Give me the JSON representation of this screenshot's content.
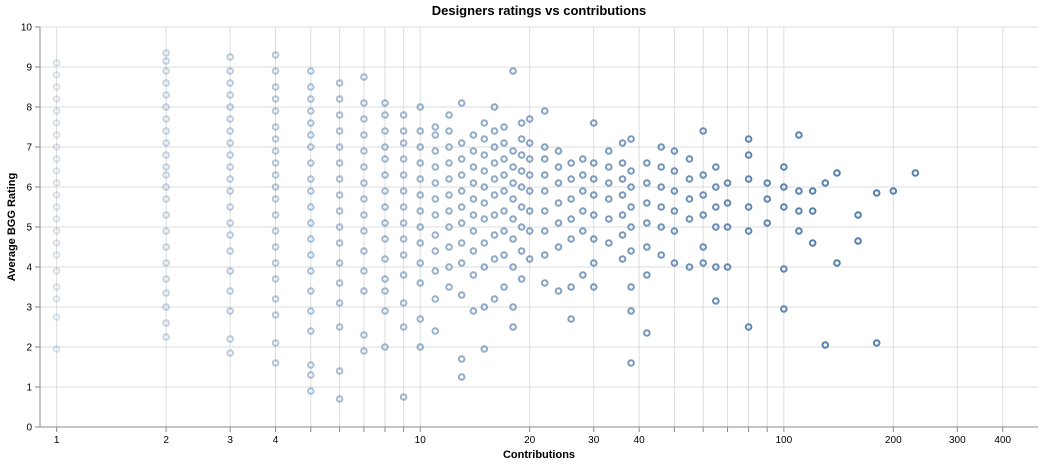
{
  "chart_data": {
    "type": "scatter",
    "title": "Designers ratings vs contributions",
    "xlabel": "Contributions",
    "ylabel": "Average BGG Rating",
    "x_scale": "log",
    "xlim": [
      0.9,
      500
    ],
    "ylim": [
      0,
      10
    ],
    "grid": true,
    "legend": "none",
    "mark": "hollow-circle",
    "point_color": "#4c78a8",
    "x_tick_labels": [
      "1",
      "2",
      "3",
      "4",
      "10",
      "20",
      "30",
      "40",
      "100",
      "200",
      "300",
      "400"
    ],
    "x_tick_values": [
      1,
      2,
      3,
      4,
      10,
      20,
      30,
      40,
      100,
      200,
      300,
      400
    ],
    "x_minor_ticks": [
      5,
      6,
      7,
      8,
      9,
      50,
      60,
      70,
      80,
      90
    ],
    "y_ticks": [
      0,
      1,
      2,
      3,
      4,
      5,
      6,
      7,
      8,
      9,
      10
    ],
    "y_tick_labels": [
      "0",
      "1",
      "2",
      "3",
      "4",
      "5",
      "6",
      "7",
      "8",
      "9",
      "10"
    ],
    "points": [
      [
        1,
        1.95
      ],
      [
        1,
        2.75
      ],
      [
        1,
        3.2
      ],
      [
        1,
        3.5
      ],
      [
        1,
        3.9
      ],
      [
        1,
        4.3
      ],
      [
        1,
        4.6
      ],
      [
        1,
        4.9
      ],
      [
        1,
        5.2
      ],
      [
        1,
        5.5
      ],
      [
        1,
        5.8
      ],
      [
        1,
        6.1
      ],
      [
        1,
        6.4
      ],
      [
        1,
        6.7
      ],
      [
        1,
        7.0
      ],
      [
        1,
        7.3
      ],
      [
        1,
        7.6
      ],
      [
        1,
        7.9
      ],
      [
        1,
        8.2
      ],
      [
        1,
        8.5
      ],
      [
        1,
        8.8
      ],
      [
        1,
        9.1
      ],
      [
        2,
        2.25
      ],
      [
        2,
        2.6
      ],
      [
        2,
        3.0
      ],
      [
        2,
        3.35
      ],
      [
        2,
        3.7
      ],
      [
        2,
        4.1
      ],
      [
        2,
        4.5
      ],
      [
        2,
        4.9
      ],
      [
        2,
        5.3
      ],
      [
        2,
        5.7
      ],
      [
        2,
        6.0
      ],
      [
        2,
        6.3
      ],
      [
        2,
        6.5
      ],
      [
        2,
        6.8
      ],
      [
        2,
        7.1
      ],
      [
        2,
        7.4
      ],
      [
        2,
        7.7
      ],
      [
        2,
        8.0
      ],
      [
        2,
        8.3
      ],
      [
        2,
        8.6
      ],
      [
        2,
        8.9
      ],
      [
        2,
        9.15
      ],
      [
        2,
        9.35
      ],
      [
        3,
        1.85
      ],
      [
        3,
        2.2
      ],
      [
        3,
        2.9
      ],
      [
        3,
        3.4
      ],
      [
        3,
        3.9
      ],
      [
        3,
        4.4
      ],
      [
        3,
        4.8
      ],
      [
        3,
        5.1
      ],
      [
        3,
        5.5
      ],
      [
        3,
        5.9
      ],
      [
        3,
        6.2
      ],
      [
        3,
        6.5
      ],
      [
        3,
        6.8
      ],
      [
        3,
        7.1
      ],
      [
        3,
        7.4
      ],
      [
        3,
        7.7
      ],
      [
        3,
        8.0
      ],
      [
        3,
        8.3
      ],
      [
        3,
        8.6
      ],
      [
        3,
        8.9
      ],
      [
        3,
        9.25
      ],
      [
        4,
        1.6
      ],
      [
        4,
        2.1
      ],
      [
        4,
        2.8
      ],
      [
        4,
        3.2
      ],
      [
        4,
        3.7
      ],
      [
        4,
        4.1
      ],
      [
        4,
        4.5
      ],
      [
        4,
        4.9
      ],
      [
        4,
        5.3
      ],
      [
        4,
        5.7
      ],
      [
        4,
        6.0
      ],
      [
        4,
        6.3
      ],
      [
        4,
        6.6
      ],
      [
        4,
        6.9
      ],
      [
        4,
        7.2
      ],
      [
        4,
        7.5
      ],
      [
        4,
        7.9
      ],
      [
        4,
        8.2
      ],
      [
        4,
        8.5
      ],
      [
        4,
        8.9
      ],
      [
        4,
        9.3
      ],
      [
        5,
        0.9
      ],
      [
        5,
        1.3
      ],
      [
        5,
        1.55
      ],
      [
        5,
        2.4
      ],
      [
        5,
        2.9
      ],
      [
        5,
        3.4
      ],
      [
        5,
        3.9
      ],
      [
        5,
        4.3
      ],
      [
        5,
        4.7
      ],
      [
        5,
        5.1
      ],
      [
        5,
        5.5
      ],
      [
        5,
        5.9
      ],
      [
        5,
        6.2
      ],
      [
        5,
        6.6
      ],
      [
        5,
        7.0
      ],
      [
        5,
        7.3
      ],
      [
        5,
        7.6
      ],
      [
        5,
        7.9
      ],
      [
        5,
        8.2
      ],
      [
        5,
        8.5
      ],
      [
        5,
        8.9
      ],
      [
        6,
        0.7
      ],
      [
        6,
        1.4
      ],
      [
        6,
        2.5
      ],
      [
        6,
        3.1
      ],
      [
        6,
        3.6
      ],
      [
        6,
        4.1
      ],
      [
        6,
        4.6
      ],
      [
        6,
        5.0
      ],
      [
        6,
        5.4
      ],
      [
        6,
        5.8
      ],
      [
        6,
        6.2
      ],
      [
        6,
        6.6
      ],
      [
        6,
        7.0
      ],
      [
        6,
        7.4
      ],
      [
        6,
        7.8
      ],
      [
        6,
        8.2
      ],
      [
        6,
        8.6
      ],
      [
        7,
        1.9
      ],
      [
        7,
        2.3
      ],
      [
        7,
        3.4
      ],
      [
        7,
        3.9
      ],
      [
        7,
        4.4
      ],
      [
        7,
        4.9
      ],
      [
        7,
        5.3
      ],
      [
        7,
        5.7
      ],
      [
        7,
        6.1
      ],
      [
        7,
        6.5
      ],
      [
        7,
        6.9
      ],
      [
        7,
        7.3
      ],
      [
        7,
        7.7
      ],
      [
        7,
        8.1
      ],
      [
        7,
        8.75
      ],
      [
        8,
        2.0
      ],
      [
        8,
        2.9
      ],
      [
        8,
        3.4
      ],
      [
        8,
        3.7
      ],
      [
        8,
        4.2
      ],
      [
        8,
        4.7
      ],
      [
        8,
        5.1
      ],
      [
        8,
        5.5
      ],
      [
        8,
        5.9
      ],
      [
        8,
        6.3
      ],
      [
        8,
        6.7
      ],
      [
        8,
        7.0
      ],
      [
        8,
        7.4
      ],
      [
        8,
        7.8
      ],
      [
        8,
        8.1
      ],
      [
        9,
        0.75
      ],
      [
        9,
        2.5
      ],
      [
        9,
        3.1
      ],
      [
        9,
        3.8
      ],
      [
        9,
        4.3
      ],
      [
        9,
        4.7
      ],
      [
        9,
        5.1
      ],
      [
        9,
        5.5
      ],
      [
        9,
        5.9
      ],
      [
        9,
        6.3
      ],
      [
        9,
        6.7
      ],
      [
        9,
        7.1
      ],
      [
        9,
        7.4
      ],
      [
        9,
        7.8
      ],
      [
        10,
        2.0
      ],
      [
        10,
        2.7
      ],
      [
        10,
        3.6
      ],
      [
        10,
        4.1
      ],
      [
        10,
        4.6
      ],
      [
        10,
        5.0
      ],
      [
        10,
        5.4
      ],
      [
        10,
        5.8
      ],
      [
        10,
        6.2
      ],
      [
        10,
        6.6
      ],
      [
        10,
        7.0
      ],
      [
        10,
        7.4
      ],
      [
        10,
        8.0
      ],
      [
        11,
        2.4
      ],
      [
        11,
        3.2
      ],
      [
        11,
        3.9
      ],
      [
        11,
        4.4
      ],
      [
        11,
        4.8
      ],
      [
        11,
        5.3
      ],
      [
        11,
        5.7
      ],
      [
        11,
        6.1
      ],
      [
        11,
        6.5
      ],
      [
        11,
        6.9
      ],
      [
        11,
        7.3
      ],
      [
        11,
        7.5
      ],
      [
        12,
        3.5
      ],
      [
        12,
        4.0
      ],
      [
        12,
        4.5
      ],
      [
        12,
        5.0
      ],
      [
        12,
        5.4
      ],
      [
        12,
        5.8
      ],
      [
        12,
        6.2
      ],
      [
        12,
        6.6
      ],
      [
        12,
        7.0
      ],
      [
        12,
        7.4
      ],
      [
        12,
        7.8
      ],
      [
        13,
        1.25
      ],
      [
        13,
        1.7
      ],
      [
        13,
        3.3
      ],
      [
        13,
        4.1
      ],
      [
        13,
        4.6
      ],
      [
        13,
        5.1
      ],
      [
        13,
        5.5
      ],
      [
        13,
        5.9
      ],
      [
        13,
        6.3
      ],
      [
        13,
        6.7
      ],
      [
        13,
        7.1
      ],
      [
        13,
        8.1
      ],
      [
        14,
        2.9
      ],
      [
        14,
        3.8
      ],
      [
        14,
        4.4
      ],
      [
        14,
        4.9
      ],
      [
        14,
        5.3
      ],
      [
        14,
        5.7
      ],
      [
        14,
        6.1
      ],
      [
        14,
        6.5
      ],
      [
        14,
        6.9
      ],
      [
        14,
        7.3
      ],
      [
        15,
        1.95
      ],
      [
        15,
        3.0
      ],
      [
        15,
        4.0
      ],
      [
        15,
        4.6
      ],
      [
        15,
        5.2
      ],
      [
        15,
        5.6
      ],
      [
        15,
        6.0
      ],
      [
        15,
        6.4
      ],
      [
        15,
        6.8
      ],
      [
        15,
        7.2
      ],
      [
        15,
        7.6
      ],
      [
        16,
        3.2
      ],
      [
        16,
        4.2
      ],
      [
        16,
        4.8
      ],
      [
        16,
        5.3
      ],
      [
        16,
        5.8
      ],
      [
        16,
        6.2
      ],
      [
        16,
        6.6
      ],
      [
        16,
        7.0
      ],
      [
        16,
        7.4
      ],
      [
        16,
        8.0
      ],
      [
        17,
        3.5
      ],
      [
        17,
        4.3
      ],
      [
        17,
        4.9
      ],
      [
        17,
        5.4
      ],
      [
        17,
        5.9
      ],
      [
        17,
        6.3
      ],
      [
        17,
        6.7
      ],
      [
        17,
        7.1
      ],
      [
        17,
        7.5
      ],
      [
        18,
        2.5
      ],
      [
        18,
        3.0
      ],
      [
        18,
        4.0
      ],
      [
        18,
        4.7
      ],
      [
        18,
        5.2
      ],
      [
        18,
        5.7
      ],
      [
        18,
        6.1
      ],
      [
        18,
        6.5
      ],
      [
        18,
        6.9
      ],
      [
        18,
        8.9
      ],
      [
        19,
        3.7
      ],
      [
        19,
        4.4
      ],
      [
        19,
        5.0
      ],
      [
        19,
        5.5
      ],
      [
        19,
        6.0
      ],
      [
        19,
        6.4
      ],
      [
        19,
        6.8
      ],
      [
        19,
        7.2
      ],
      [
        19,
        7.6
      ],
      [
        20,
        4.2
      ],
      [
        20,
        4.9
      ],
      [
        20,
        5.4
      ],
      [
        20,
        5.9
      ],
      [
        20,
        6.3
      ],
      [
        20,
        6.7
      ],
      [
        20,
        7.1
      ],
      [
        20,
        7.7
      ],
      [
        22,
        3.6
      ],
      [
        22,
        4.3
      ],
      [
        22,
        4.9
      ],
      [
        22,
        5.4
      ],
      [
        22,
        5.9
      ],
      [
        22,
        6.3
      ],
      [
        22,
        6.7
      ],
      [
        22,
        7.0
      ],
      [
        22,
        7.9
      ],
      [
        24,
        3.4
      ],
      [
        24,
        4.5
      ],
      [
        24,
        5.1
      ],
      [
        24,
        5.6
      ],
      [
        24,
        6.1
      ],
      [
        24,
        6.5
      ],
      [
        24,
        6.9
      ],
      [
        26,
        2.7
      ],
      [
        26,
        3.5
      ],
      [
        26,
        4.7
      ],
      [
        26,
        5.2
      ],
      [
        26,
        5.7
      ],
      [
        26,
        6.2
      ],
      [
        26,
        6.6
      ],
      [
        28,
        3.8
      ],
      [
        28,
        4.9
      ],
      [
        28,
        5.4
      ],
      [
        28,
        5.9
      ],
      [
        28,
        6.3
      ],
      [
        28,
        6.7
      ],
      [
        30,
        3.5
      ],
      [
        30,
        4.1
      ],
      [
        30,
        4.7
      ],
      [
        30,
        5.3
      ],
      [
        30,
        5.8
      ],
      [
        30,
        6.2
      ],
      [
        30,
        6.6
      ],
      [
        30,
        7.6
      ],
      [
        33,
        4.6
      ],
      [
        33,
        5.2
      ],
      [
        33,
        5.7
      ],
      [
        33,
        6.1
      ],
      [
        33,
        6.5
      ],
      [
        33,
        6.9
      ],
      [
        36,
        4.2
      ],
      [
        36,
        4.8
      ],
      [
        36,
        5.3
      ],
      [
        36,
        5.8
      ],
      [
        36,
        6.2
      ],
      [
        36,
        6.6
      ],
      [
        36,
        7.1
      ],
      [
        38,
        1.6
      ],
      [
        38,
        2.9
      ],
      [
        38,
        3.5
      ],
      [
        38,
        4.4
      ],
      [
        38,
        5.0
      ],
      [
        38,
        5.5
      ],
      [
        38,
        6.0
      ],
      [
        38,
        6.4
      ],
      [
        38,
        7.2
      ],
      [
        42,
        2.35
      ],
      [
        42,
        3.8
      ],
      [
        42,
        4.5
      ],
      [
        42,
        5.1
      ],
      [
        42,
        5.6
      ],
      [
        42,
        6.1
      ],
      [
        42,
        6.6
      ],
      [
        46,
        4.3
      ],
      [
        46,
        5.0
      ],
      [
        46,
        5.5
      ],
      [
        46,
        6.0
      ],
      [
        46,
        6.5
      ],
      [
        46,
        7.0
      ],
      [
        50,
        4.1
      ],
      [
        50,
        4.9
      ],
      [
        50,
        5.4
      ],
      [
        50,
        5.9
      ],
      [
        50,
        6.4
      ],
      [
        50,
        6.9
      ],
      [
        55,
        4.0
      ],
      [
        55,
        5.2
      ],
      [
        55,
        5.7
      ],
      [
        55,
        6.2
      ],
      [
        55,
        6.7
      ],
      [
        60,
        4.1
      ],
      [
        60,
        4.5
      ],
      [
        60,
        5.3
      ],
      [
        60,
        5.8
      ],
      [
        60,
        6.3
      ],
      [
        60,
        7.4
      ],
      [
        65,
        3.15
      ],
      [
        65,
        4.0
      ],
      [
        65,
        5.0
      ],
      [
        65,
        5.5
      ],
      [
        65,
        6.0
      ],
      [
        65,
        6.5
      ],
      [
        70,
        4.0
      ],
      [
        70,
        5.0
      ],
      [
        70,
        5.6
      ],
      [
        70,
        6.1
      ],
      [
        80,
        2.5
      ],
      [
        80,
        4.9
      ],
      [
        80,
        5.5
      ],
      [
        80,
        6.2
      ],
      [
        80,
        6.8
      ],
      [
        80,
        7.2
      ],
      [
        90,
        5.1
      ],
      [
        90,
        5.7
      ],
      [
        90,
        6.1
      ],
      [
        100,
        2.95
      ],
      [
        100,
        3.95
      ],
      [
        100,
        5.5
      ],
      [
        100,
        6.0
      ],
      [
        100,
        6.5
      ],
      [
        110,
        4.9
      ],
      [
        110,
        5.4
      ],
      [
        110,
        5.9
      ],
      [
        110,
        7.3
      ],
      [
        120,
        4.6
      ],
      [
        120,
        5.4
      ],
      [
        120,
        5.9
      ],
      [
        130,
        2.05
      ],
      [
        130,
        6.1
      ],
      [
        140,
        4.1
      ],
      [
        140,
        6.35
      ],
      [
        160,
        4.65
      ],
      [
        160,
        5.3
      ],
      [
        180,
        2.1
      ],
      [
        180,
        5.85
      ],
      [
        200,
        5.9
      ],
      [
        230,
        6.35
      ]
    ]
  }
}
